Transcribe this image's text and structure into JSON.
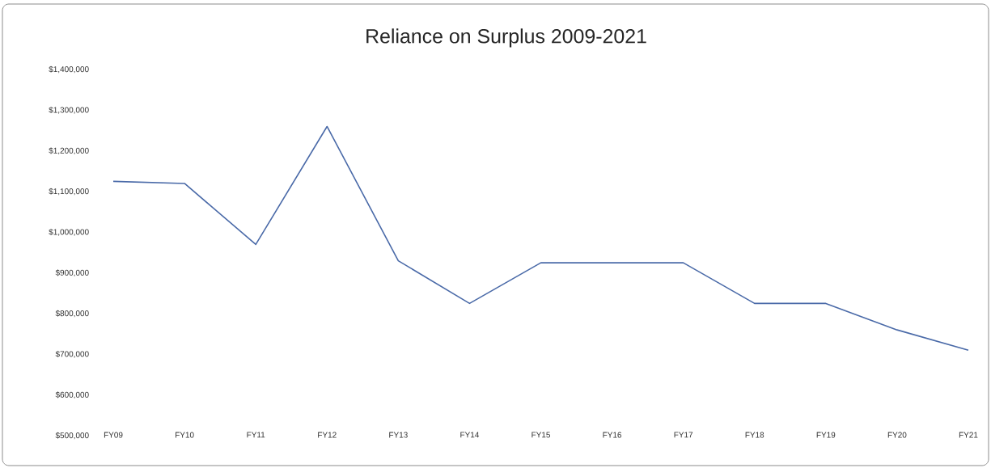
{
  "chart_data": {
    "type": "line",
    "title": "Reliance on Surplus 2009-2021",
    "categories": [
      "FY09",
      "FY10",
      "FY11",
      "FY12",
      "FY13",
      "FY14",
      "FY15",
      "FY16",
      "FY17",
      "FY18",
      "FY19",
      "FY20",
      "FY21"
    ],
    "values": [
      1125000,
      1120000,
      970000,
      1260000,
      930000,
      825000,
      925000,
      925000,
      925000,
      825000,
      825000,
      760000,
      710000
    ],
    "color": "#4a6aa8",
    "ylim": [
      500000,
      1400000
    ],
    "yticks": [
      {
        "value": 500000,
        "label": "$500,000"
      },
      {
        "value": 600000,
        "label": "$600,000"
      },
      {
        "value": 700000,
        "label": "$700,000"
      },
      {
        "value": 800000,
        "label": "$800,000"
      },
      {
        "value": 900000,
        "label": "$900,000"
      },
      {
        "value": 1000000,
        "label": "$1,000,000"
      },
      {
        "value": 1100000,
        "label": "$1,100,000"
      },
      {
        "value": 1200000,
        "label": "$1,200,000"
      },
      {
        "value": 1300000,
        "label": "$1,300,000"
      },
      {
        "value": 1400000,
        "label": "$1,400,000"
      }
    ]
  }
}
